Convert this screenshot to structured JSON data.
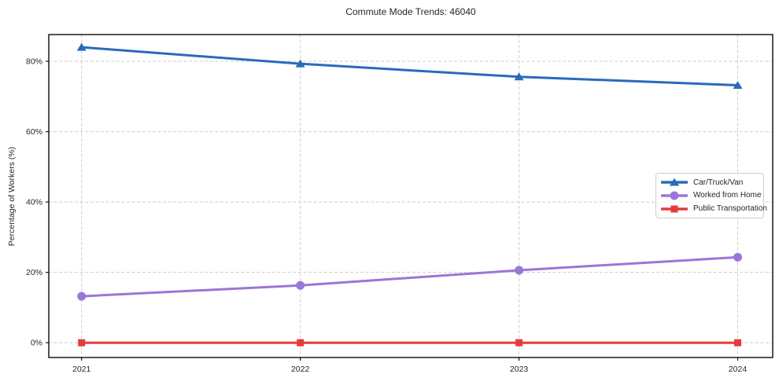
{
  "chart_data": {
    "type": "line",
    "title": "Commute Mode Trends: 46040",
    "xlabel": "",
    "ylabel": "Percentage of Workers (%)",
    "x": [
      2021,
      2022,
      2023,
      2024
    ],
    "x_tick_labels": [
      "2021",
      "2022",
      "2023",
      "2024"
    ],
    "y_ticks": [
      {
        "value": 0,
        "label": "0%"
      },
      {
        "value": 20,
        "label": "20%"
      },
      {
        "value": 40,
        "label": "40%"
      },
      {
        "value": 60,
        "label": "60%"
      },
      {
        "value": 80,
        "label": "80%"
      }
    ],
    "xlim": [
      2020.85,
      2024.16
    ],
    "ylim": [
      -4.2,
      87.6
    ],
    "grid": true,
    "grid_style": "dashed",
    "legend_position": "center-right",
    "colors": {
      "grid": "#cccccc",
      "axis": "#1a1a1a",
      "text": "#262626"
    },
    "series": [
      {
        "name": "Car/Truck/Van",
        "marker": "triangle",
        "color": "#2a6abb",
        "values": [
          84.0,
          79.3,
          75.6,
          73.2
        ]
      },
      {
        "name": "Worked from Home",
        "marker": "circle",
        "color": "#9a76d8",
        "values": [
          13.2,
          16.3,
          20.6,
          24.3
        ]
      },
      {
        "name": "Public Transportation",
        "marker": "square",
        "color": "#e23d3c",
        "values": [
          0.0,
          0.0,
          0.0,
          0.0
        ]
      }
    ]
  }
}
